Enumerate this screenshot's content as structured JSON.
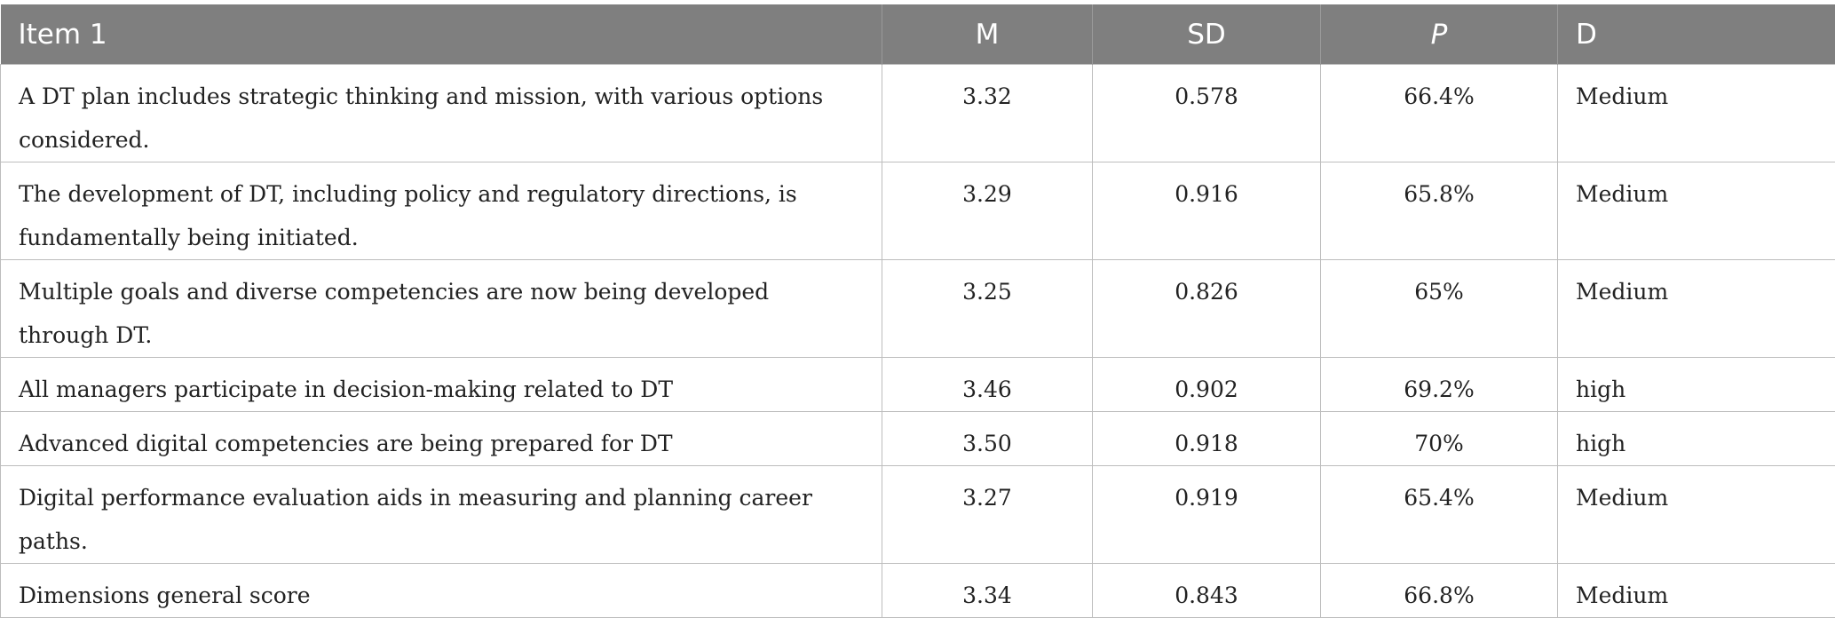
{
  "table": {
    "headers": [
      "Item 1",
      "M",
      "SD",
      "P",
      "D"
    ],
    "rows": [
      [
        "A DT plan includes strategic thinking and mission, with various options considered.",
        "3.32",
        "0.578",
        "66.4%",
        "Medium"
      ],
      [
        "The development of DT, including policy and regulatory directions, is fundamentally being initiated.",
        "3.29",
        "0.916",
        "65.8%",
        "Medium"
      ],
      [
        "Multiple goals and diverse competencies are now being developed through DT.",
        "3.25",
        "0.826",
        "65%",
        "Medium"
      ],
      [
        "All managers participate in decision-making related to DT",
        "3.46",
        "0.902",
        "69.2%",
        "high"
      ],
      [
        "Advanced digital competencies are being prepared for DT",
        "3.50",
        "0.918",
        "70%",
        "high"
      ],
      [
        "Digital performance evaluation aids in measuring and planning career paths.",
        "3.27",
        "0.919",
        "65.4%",
        "Medium"
      ],
      [
        "Dimensions general score",
        "3.34",
        "0.843",
        "66.8%",
        "Medium"
      ]
    ]
  }
}
